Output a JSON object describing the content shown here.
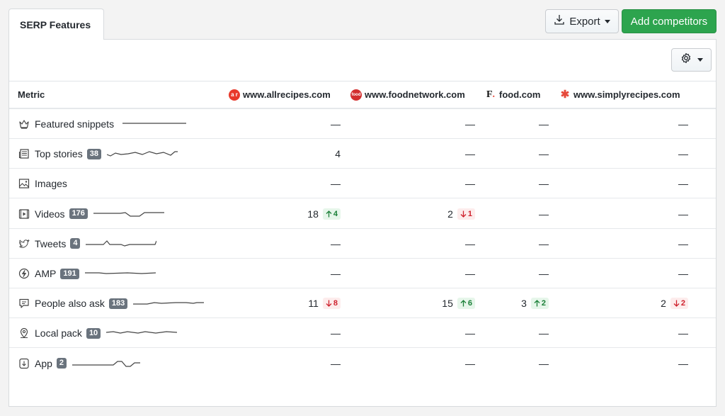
{
  "tab": {
    "label": "SERP Features"
  },
  "toolbar": {
    "export_label": "Export",
    "add_label": "Add competitors"
  },
  "table": {
    "metric_header": "Metric",
    "sites": [
      {
        "name": "www.allrecipes.com",
        "logo_text": "a r",
        "color": "#e8392b"
      },
      {
        "name": "www.foodnetwork.com",
        "logo_text": "food",
        "color": "#d32f2f"
      },
      {
        "name": "food.com",
        "logo_text": "F.",
        "color": "#111111"
      },
      {
        "name": "www.simplyrecipes.com",
        "logo_text": "✱",
        "color": "#e64a3b"
      }
    ],
    "rows": [
      {
        "label": "Featured snippets",
        "count": "",
        "icon": "crown-icon",
        "values": [
          "—",
          "—",
          "—",
          "—"
        ],
        "deltas": [
          null,
          null,
          null,
          null
        ]
      },
      {
        "label": "Top stories",
        "count": "38",
        "icon": "newspaper-icon",
        "values": [
          "4",
          "—",
          "—",
          "—"
        ],
        "deltas": [
          null,
          null,
          null,
          null
        ]
      },
      {
        "label": "Images",
        "count": "",
        "icon": "image-icon",
        "values": [
          "—",
          "—",
          "—",
          "—"
        ],
        "deltas": [
          null,
          null,
          null,
          null
        ]
      },
      {
        "label": "Videos",
        "count": "176",
        "icon": "video-icon",
        "values": [
          "18",
          "2",
          "—",
          "—"
        ],
        "deltas": [
          {
            "dir": "up",
            "text": "4"
          },
          {
            "dir": "down",
            "text": "1"
          },
          null,
          null
        ]
      },
      {
        "label": "Tweets",
        "count": "4",
        "icon": "twitter-icon",
        "values": [
          "—",
          "—",
          "—",
          "—"
        ],
        "deltas": [
          null,
          null,
          null,
          null
        ]
      },
      {
        "label": "AMP",
        "count": "191",
        "icon": "lightning-icon",
        "values": [
          "—",
          "—",
          "—",
          "—"
        ],
        "deltas": [
          null,
          null,
          null,
          null
        ]
      },
      {
        "label": "People also ask",
        "count": "183",
        "icon": "question-chat-icon",
        "values": [
          "11",
          "15",
          "3",
          "2"
        ],
        "deltas": [
          {
            "dir": "down",
            "text": "8"
          },
          {
            "dir": "up",
            "text": "6"
          },
          {
            "dir": "up",
            "text": "2"
          },
          {
            "dir": "down",
            "text": "2"
          }
        ]
      },
      {
        "label": "Local pack",
        "count": "10",
        "icon": "map-pin-icon",
        "values": [
          "—",
          "—",
          "—",
          "—"
        ],
        "deltas": [
          null,
          null,
          null,
          null
        ]
      },
      {
        "label": "App",
        "count": "2",
        "icon": "app-download-icon",
        "values": [
          "—",
          "—",
          "—",
          "—"
        ],
        "deltas": [
          null,
          null,
          null,
          null
        ]
      }
    ]
  },
  "colors": {
    "accent_green": "#2da44e",
    "up": "#1a7f37",
    "down": "#cf222e",
    "badge": "#6a737d"
  }
}
